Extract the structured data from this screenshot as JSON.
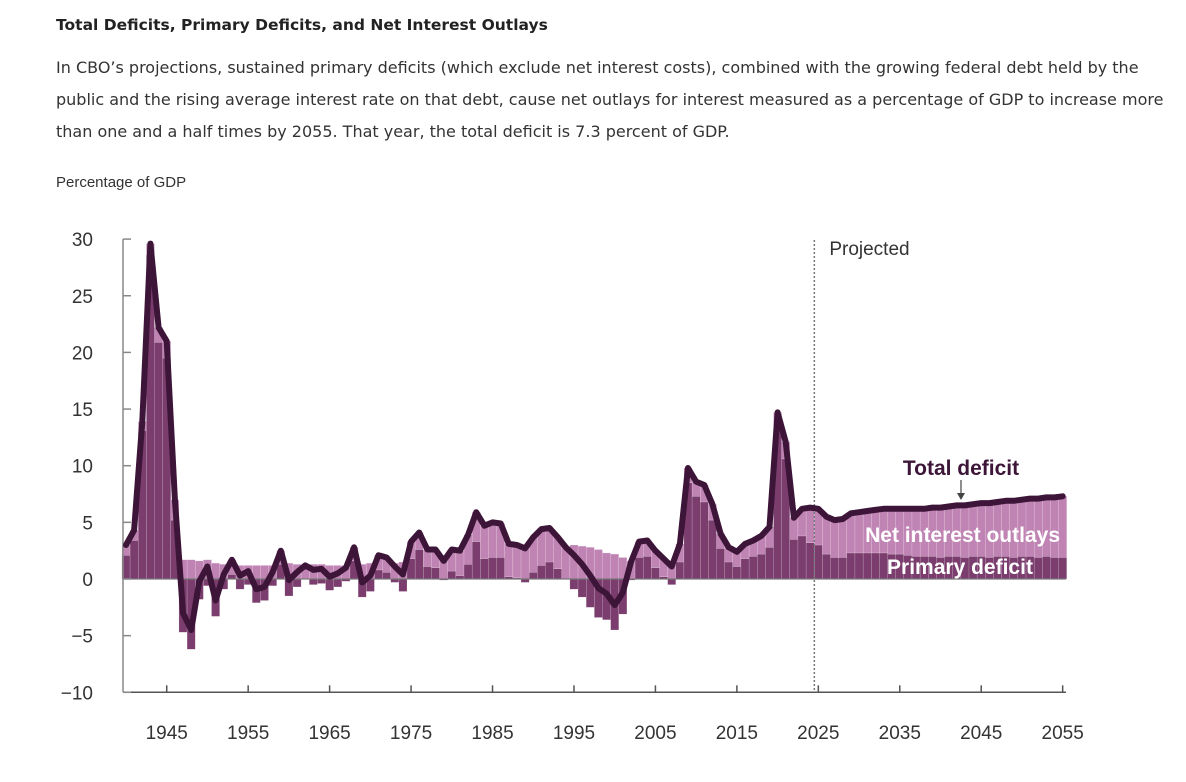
{
  "title": "Total Deficits, Primary Deficits, and Net Interest Outlays",
  "description": "In CBO’s projections, sustained primary deficits (which exclude net interest costs), combined with the growing federal debt held by the public and the rising average interest rate on that debt, cause net outlays for interest measured as a percentage of GDP to increase more than one and a half times by 2055. That year, the total deficit is 7.3 percent of GDP.",
  "chart_data": {
    "type": "bar+line",
    "ylabel": "Percentage of GDP",
    "ylim": [
      -10,
      30
    ],
    "xlim": [
      1940,
      2055
    ],
    "yticks": [
      "30",
      "25",
      "20",
      "15",
      "10",
      "5",
      "0",
      "−5",
      "−10"
    ],
    "ytick_values": [
      30,
      25,
      20,
      15,
      10,
      5,
      0,
      -5,
      -10
    ],
    "xticks": [
      "1945",
      "1955",
      "1965",
      "1975",
      "1985",
      "1995",
      "2005",
      "2015",
      "2025",
      "2035",
      "2045",
      "2055"
    ],
    "grid": false,
    "projection_start": 2025,
    "projected_label": "Projected",
    "x_start": 1940,
    "series": [
      {
        "name": "Total deficit",
        "type": "line",
        "color": "#3d1538",
        "values": [
          3.0,
          4.3,
          13.9,
          29.6,
          22.2,
          21.0,
          7.0,
          -3.0,
          -4.5,
          -0.2,
          1.1,
          -1.9,
          0.4,
          1.7,
          0.3,
          0.7,
          -0.9,
          -0.7,
          0.6,
          2.5,
          -0.1,
          0.6,
          1.2,
          0.8,
          0.9,
          0.2,
          0.5,
          1.0,
          2.8,
          -0.3,
          0.3,
          2.1,
          1.9,
          1.1,
          0.4,
          3.3,
          4.1,
          2.6,
          2.6,
          1.6,
          2.6,
          2.5,
          3.9,
          5.9,
          4.7,
          5.0,
          4.9,
          3.1,
          3.0,
          2.7,
          3.7,
          4.4,
          4.5,
          3.7,
          2.8,
          2.1,
          1.3,
          0.3,
          -0.8,
          -1.3,
          -2.3,
          -1.2,
          1.5,
          3.3,
          3.4,
          2.5,
          1.8,
          1.1,
          3.1,
          9.8,
          8.6,
          8.3,
          6.6,
          4.0,
          2.8,
          2.4,
          3.1,
          3.4,
          3.8,
          4.6,
          14.7,
          12.1,
          5.4,
          6.2,
          6.3,
          6.2,
          5.5,
          5.2,
          5.3,
          5.8,
          5.9,
          6.0,
          6.1,
          6.2,
          6.2,
          6.2,
          6.2,
          6.2,
          6.2,
          6.3,
          6.3,
          6.4,
          6.5,
          6.5,
          6.6,
          6.7,
          6.7,
          6.8,
          6.9,
          6.9,
          7.0,
          7.1,
          7.1,
          7.2,
          7.2,
          7.3
        ]
      },
      {
        "name": "Net interest outlays",
        "type": "bar",
        "color": "#c084b4",
        "values": [
          0.9,
          0.9,
          0.8,
          1.0,
          1.3,
          1.5,
          1.8,
          1.7,
          1.7,
          1.6,
          1.7,
          1.4,
          1.3,
          1.3,
          1.2,
          1.2,
          1.2,
          1.2,
          1.2,
          1.2,
          1.4,
          1.3,
          1.2,
          1.3,
          1.3,
          1.2,
          1.2,
          1.2,
          1.2,
          1.3,
          1.4,
          1.3,
          1.3,
          1.4,
          1.5,
          1.5,
          1.5,
          1.5,
          1.6,
          1.7,
          1.9,
          2.2,
          2.6,
          2.6,
          2.9,
          3.1,
          3.0,
          2.9,
          2.9,
          3.0,
          3.1,
          3.2,
          3.0,
          2.8,
          2.8,
          3.0,
          2.9,
          2.8,
          2.6,
          2.3,
          2.2,
          1.9,
          1.6,
          1.4,
          1.4,
          1.5,
          1.6,
          1.6,
          1.6,
          1.3,
          1.3,
          1.5,
          1.4,
          1.3,
          1.3,
          1.3,
          1.3,
          1.4,
          1.6,
          1.8,
          1.6,
          1.5,
          1.9,
          2.4,
          3.1,
          3.2,
          3.3,
          3.3,
          3.4,
          3.5,
          3.6,
          3.7,
          3.8,
          3.9,
          4.0,
          4.0,
          4.1,
          4.2,
          4.2,
          4.3,
          4.4,
          4.4,
          4.5,
          4.6,
          4.6,
          4.7,
          4.8,
          4.8,
          4.9,
          5.0,
          5.0,
          5.1,
          5.2,
          5.2,
          5.3,
          5.4
        ]
      },
      {
        "name": "Primary deficit",
        "type": "bar",
        "color": "#7a3d6e",
        "values": "total deficit minus net interest outlays"
      }
    ],
    "annotations": {
      "total": "Total deficit",
      "interest": "Net interest outlays",
      "primary": "Primary deficit"
    },
    "colors": {
      "primary": "#7a3d6e",
      "interest": "#c084b4",
      "line": "#3d1538",
      "axis": "#888888"
    }
  }
}
